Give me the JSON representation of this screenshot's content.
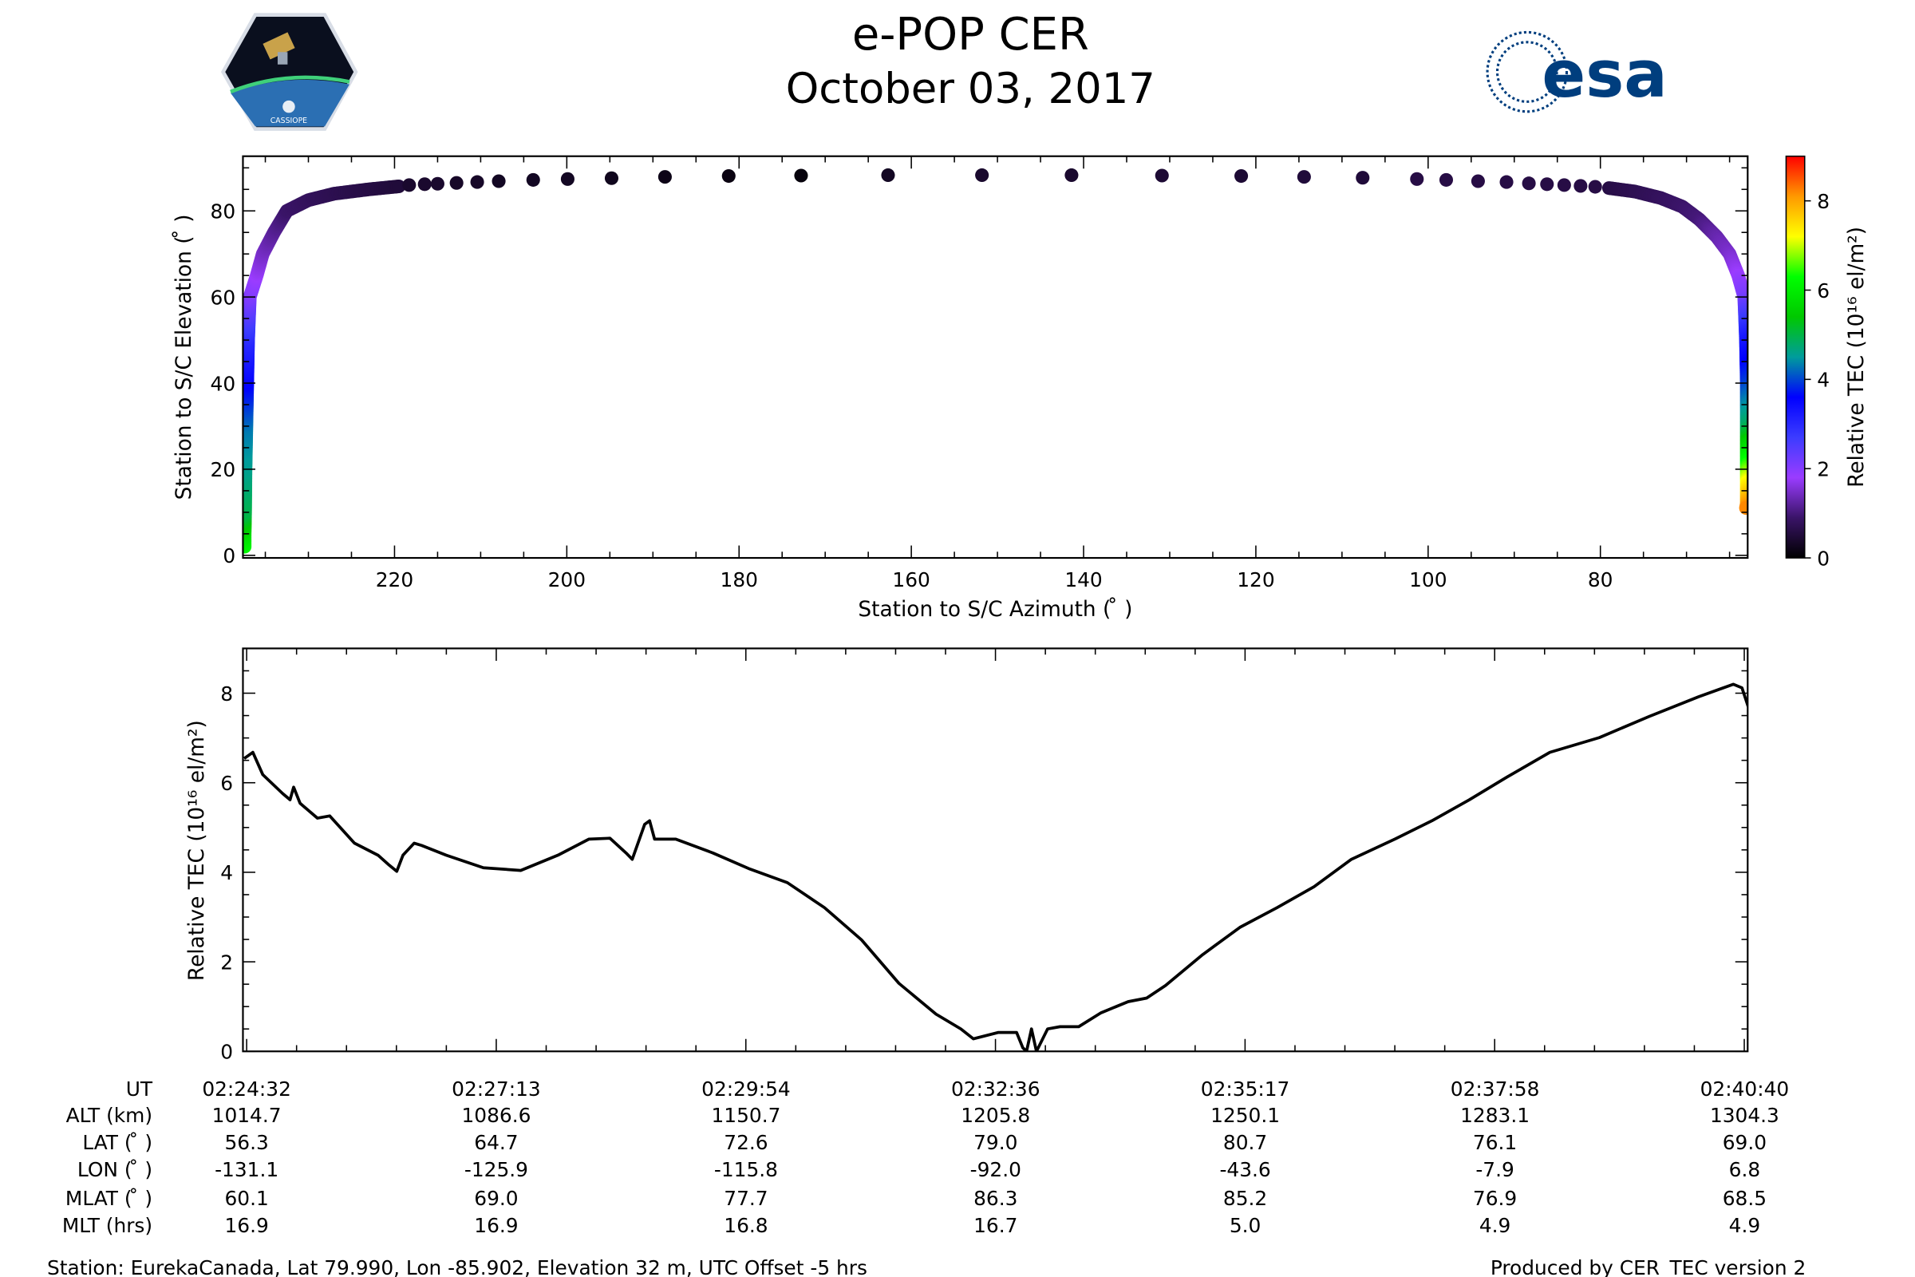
{
  "header": {
    "title": "e-POP CER",
    "date": "October 03, 2017"
  },
  "logos": {
    "left": "CASSIOPE",
    "right": "esa"
  },
  "colormap": [
    "#000000",
    "#3a1468",
    "#9a3cff",
    "#3c3cff",
    "#0000ff",
    "#009c9c",
    "#00c800",
    "#00ff00",
    "#ffff00",
    "#ff9900",
    "#ff0000"
  ],
  "chart_data": [
    {
      "type": "scatter",
      "title": "",
      "xlabel": "Station to S/C Azimuth ( ̊ )",
      "ylabel": "Station to S/C Elevation ( ̊ )",
      "xlim": [
        237.6,
        62.9
      ],
      "ylim": [
        -0.6,
        92.7
      ],
      "xticks": [
        220,
        200,
        180,
        160,
        140,
        120,
        100,
        80
      ],
      "yticks": [
        0,
        20,
        40,
        60,
        80
      ],
      "colorbar": {
        "label": "Relative TEC (10¹⁶ el/m²)",
        "range": [
          0,
          9
        ],
        "ticks": [
          0,
          2,
          4,
          6,
          8
        ]
      },
      "columns": [
        "azimuth",
        "elevation",
        "tec"
      ],
      "left_leg": [
        [
          237.4,
          2,
          6.2
        ],
        [
          237.4,
          5,
          5.8
        ],
        [
          237.35,
          10,
          5.0
        ],
        [
          237.3,
          20,
          4.6
        ],
        [
          237.2,
          30,
          4.3
        ],
        [
          237.1,
          40,
          3.6
        ],
        [
          237.0,
          50,
          3.0
        ],
        [
          236.8,
          60,
          2.1
        ],
        [
          236.0,
          65,
          1.8
        ],
        [
          235.3,
          70,
          1.5
        ],
        [
          234.0,
          75,
          1.2
        ],
        [
          232.5,
          80,
          0.9
        ],
        [
          230.0,
          82.5,
          0.8
        ],
        [
          227.0,
          84,
          0.7
        ],
        [
          223.0,
          85,
          0.6
        ],
        [
          219.5,
          85.7,
          0.5
        ]
      ],
      "top_points": [
        [
          218.3,
          86.0,
          0.4
        ],
        [
          216.5,
          86.2,
          0.4
        ],
        [
          215.0,
          86.3,
          0.4
        ],
        [
          212.8,
          86.5,
          0.35
        ],
        [
          210.4,
          86.7,
          0.35
        ],
        [
          207.9,
          86.9,
          0.3
        ],
        [
          203.9,
          87.2,
          0.3
        ],
        [
          199.9,
          87.4,
          0.3
        ],
        [
          194.8,
          87.6,
          0.25
        ],
        [
          188.6,
          87.9,
          0.2
        ],
        [
          181.2,
          88.1,
          0.15
        ],
        [
          172.8,
          88.2,
          0.1
        ],
        [
          162.7,
          88.3,
          0.3
        ],
        [
          151.8,
          88.3,
          0.4
        ],
        [
          141.4,
          88.3,
          0.4
        ],
        [
          130.9,
          88.2,
          0.45
        ],
        [
          121.7,
          88.1,
          0.45
        ],
        [
          114.4,
          87.9,
          0.5
        ],
        [
          107.6,
          87.7,
          0.5
        ],
        [
          101.3,
          87.4,
          0.6
        ],
        [
          97.9,
          87.2,
          0.6
        ],
        [
          94.2,
          86.9,
          0.6
        ],
        [
          90.9,
          86.7,
          0.6
        ],
        [
          88.3,
          86.4,
          0.6
        ],
        [
          86.2,
          86.2,
          0.6
        ],
        [
          84.2,
          86.0,
          0.6
        ],
        [
          82.3,
          85.8,
          0.6
        ],
        [
          80.6,
          85.6,
          0.6
        ]
      ],
      "right_leg": [
        [
          79.0,
          85.3,
          0.6
        ],
        [
          76.0,
          84.5,
          0.7
        ],
        [
          73.0,
          83,
          0.8
        ],
        [
          70.5,
          81,
          0.9
        ],
        [
          68.5,
          78,
          1.0
        ],
        [
          66.5,
          74,
          1.3
        ],
        [
          65.0,
          70,
          1.5
        ],
        [
          64.0,
          65,
          1.8
        ],
        [
          63.3,
          60,
          2.1
        ],
        [
          63.1,
          50,
          3.2
        ],
        [
          63.0,
          40,
          3.9
        ],
        [
          63.0,
          30,
          4.8
        ],
        [
          63.0,
          22,
          6.2
        ],
        [
          63.0,
          17,
          7.2
        ],
        [
          63.0,
          12,
          8.0
        ],
        [
          63.1,
          11,
          8.2
        ]
      ]
    },
    {
      "type": "line",
      "title": "",
      "xlabel": "",
      "ylabel": "Relative TEC (10¹⁶ el/m²)",
      "x_units": "seconds after 02:24:32 UT",
      "xlim": [
        -2.4,
        970
      ],
      "ylim": [
        0,
        9
      ],
      "yticks": [
        0,
        2,
        4,
        6,
        8
      ],
      "xtick_seconds": [
        0,
        161.3,
        322.7,
        484,
        645.3,
        806.7,
        968
      ],
      "x": [
        -1.6,
        4.0,
        10.4,
        23.2,
        28.0,
        30.4,
        34.5,
        45.7,
        53.7,
        69.7,
        84.9,
        92.1,
        97.0,
        101.0,
        108.2,
        113.0,
        129.0,
        153.0,
        177.1,
        201.1,
        221.2,
        234.8,
        245.2,
        249.2,
        257.2,
        260.4,
        263.6,
        277.3,
        301.3,
        325.3,
        349.4,
        373.4,
        397.4,
        421.5,
        445.5,
        461.5,
        469.6,
        485.6,
        497.6,
        501.6,
        504.0,
        507.2,
        510.4,
        517.6,
        525.6,
        537.7,
        552.1,
        569.7,
        581.7,
        593.8,
        617.8,
        641.8,
        665.9,
        689.9,
        713.9,
        742.0,
        766.0,
        790.1,
        814.1,
        842.2,
        874.2,
        906.3,
        938.3,
        960.7,
        966.3,
        970.3
      ],
      "y": [
        6.54,
        6.68,
        6.18,
        5.76,
        5.62,
        5.9,
        5.54,
        5.21,
        5.26,
        4.65,
        4.38,
        4.16,
        4.02,
        4.38,
        4.65,
        4.6,
        4.38,
        4.1,
        4.04,
        4.38,
        4.74,
        4.76,
        4.43,
        4.29,
        5.07,
        5.15,
        4.74,
        4.74,
        4.43,
        4.07,
        3.77,
        3.21,
        2.49,
        1.52,
        0.83,
        0.5,
        0.28,
        0.42,
        0.42,
        0.08,
        0.0,
        0.5,
        0.0,
        0.5,
        0.55,
        0.55,
        0.86,
        1.11,
        1.19,
        1.47,
        2.16,
        2.77,
        3.21,
        3.68,
        4.29,
        4.74,
        5.15,
        5.62,
        6.12,
        6.68,
        7.01,
        7.48,
        7.92,
        8.2,
        8.12,
        7.7
      ]
    }
  ],
  "table": {
    "row_labels": [
      "UT",
      "ALT (km)",
      "LAT ( ̊ )",
      "LON ( ̊ )",
      "MLAT ( ̊ )",
      "MLT (hrs)"
    ],
    "columns": [
      [
        "02:24:32",
        "1014.7",
        "56.3",
        "-131.1",
        "60.1",
        "16.9"
      ],
      [
        "02:27:13",
        "1086.6",
        "64.7",
        "-125.9",
        "69.0",
        "16.9"
      ],
      [
        "02:29:54",
        "1150.7",
        "72.6",
        "-115.8",
        "77.7",
        "16.8"
      ],
      [
        "02:32:36",
        "1205.8",
        "79.0",
        "-92.0",
        "86.3",
        "16.7"
      ],
      [
        "02:35:17",
        "1250.1",
        "80.7",
        "-43.6",
        "85.2",
        "5.0"
      ],
      [
        "02:37:58",
        "1283.1",
        "76.1",
        "-7.9",
        "76.9",
        "4.9"
      ],
      [
        "02:40:40",
        "1304.3",
        "69.0",
        "6.8",
        "68.5",
        "4.9"
      ]
    ]
  },
  "footer": {
    "station": "Station: EurekaCanada, Lat 79.990, Lon -85.902, Elevation 32 m, UTC Offset -5 hrs",
    "produced": "Produced by CER_TEC version 2"
  }
}
